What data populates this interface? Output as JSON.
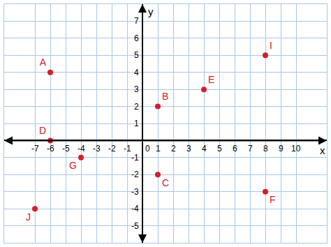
{
  "chart_data": {
    "type": "scatter",
    "marker": "circle",
    "color": "#d0202a",
    "grid": true,
    "x_label": "x",
    "y_label": "y",
    "labels": [
      "A",
      "B",
      "C",
      "D",
      "E",
      "F",
      "G",
      "I",
      "J"
    ],
    "x": [
      -6,
      1,
      1,
      -6,
      4,
      8,
      -4,
      8,
      -7
    ],
    "values": [
      4,
      2,
      -2,
      0,
      3,
      -3,
      -1,
      5,
      -4
    ],
    "xlim": [
      -9,
      12
    ],
    "ylim": [
      -6,
      8
    ],
    "xticks": [
      -7,
      -6,
      -5,
      -4,
      -3,
      -2,
      -1,
      0,
      1,
      2,
      3,
      4,
      5,
      6,
      7,
      8,
      9,
      10
    ],
    "yticks": [
      -5,
      -4,
      -3,
      -2,
      -1,
      1,
      2,
      3,
      4,
      5,
      6,
      7
    ]
  }
}
